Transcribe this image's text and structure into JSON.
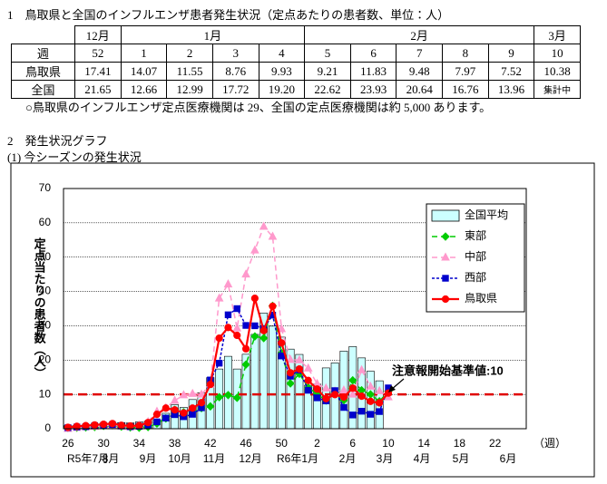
{
  "section1": {
    "title": "1　鳥取県と全国のインフルエンザ患者発生状況（定点あたりの患者数、単位：人）",
    "table": {
      "months": [
        "12月",
        "1月",
        "2月",
        "3月"
      ],
      "rows": [
        [
          "週",
          "52",
          "1",
          "2",
          "3",
          "4",
          "5",
          "6",
          "7",
          "8",
          "9",
          "10"
        ],
        [
          "鳥取県",
          "17.41",
          "14.07",
          "11.55",
          "8.76",
          "9.93",
          "9.21",
          "11.83",
          "9.48",
          "7.97",
          "7.52",
          "10.38"
        ],
        [
          "全国",
          "21.65",
          "12.66",
          "12.99",
          "17.72",
          "19.20",
          "22.62",
          "23.93",
          "20.64",
          "16.76",
          "13.96",
          "集計中"
        ]
      ]
    },
    "note": "○鳥取県のインフルエンザ定点医療機関は 29、全国の定点医療機関は約 5,000 あります。"
  },
  "section2": {
    "title": "2　発生状況グラフ",
    "subtitle": "(1) 今シーズンの発生状況"
  },
  "chart_data": {
    "type": "bar",
    "y_label": "定点当たりの患者数（人）",
    "x_unit": "（週）",
    "categories": [
      "26",
      null,
      null,
      null,
      "30",
      null,
      null,
      null,
      "34",
      null,
      null,
      null,
      "38",
      null,
      null,
      null,
      "42",
      null,
      null,
      null,
      "46",
      null,
      null,
      null,
      "50",
      null,
      null,
      null,
      "2",
      null,
      null,
      null,
      "6",
      null,
      null,
      null,
      "10",
      null,
      null,
      null,
      "14",
      null,
      null,
      null,
      "18",
      null,
      null,
      null,
      "22",
      null,
      null,
      null
    ],
    "x_month_labels": [
      "R5年7月",
      "8月",
      "9月",
      "10月",
      "11月",
      "12月",
      "R6年1月",
      "2月",
      "3月",
      "4月",
      "5月",
      "6月"
    ],
    "ylim": [
      0,
      70
    ],
    "yticks": [
      0,
      10,
      20,
      30,
      40,
      50,
      60,
      70
    ],
    "grid": true,
    "legend": "upper right",
    "threshold": 10,
    "threshold_color": "#e00000",
    "annotation": "注意報開始基準値:10",
    "series": [
      {
        "name": "全国平均",
        "type": "bar",
        "color": "#ccffff",
        "values": [
          0.9,
          1.0,
          1.1,
          1.4,
          1.6,
          1.7,
          1.8,
          1.7,
          2.0,
          2.2,
          2.6,
          4.5,
          7.0,
          6.2,
          8.5,
          10.5,
          14.9,
          17.4,
          21.1,
          17.4,
          21.7,
          27.5,
          33.7,
          29.9,
          26.7,
          23.2,
          21.65,
          12.66,
          12.99,
          17.72,
          19.2,
          22.62,
          23.93,
          20.64,
          16.76,
          13.96,
          null,
          null,
          null,
          null,
          null,
          null,
          null,
          null,
          null,
          null,
          null,
          null,
          null,
          null,
          null,
          null
        ]
      },
      {
        "name": "東部",
        "type": "line",
        "color": "#00cc00",
        "line_style": "dashed",
        "marker": "diamond",
        "values": [
          0.2,
          0.3,
          0.4,
          0.5,
          0.8,
          1.0,
          0.6,
          0.4,
          0.3,
          0.5,
          1.5,
          3.0,
          5.5,
          4.8,
          5.5,
          6.0,
          6.5,
          9.2,
          9.8,
          9.0,
          18.7,
          26.9,
          26.4,
          35.8,
          22.0,
          13.2,
          16.0,
          12.0,
          10.1,
          8.2,
          10.4,
          8.3,
          14.1,
          11.2,
          10.0,
          8.0,
          10.9,
          null,
          null,
          null,
          null,
          null,
          null,
          null,
          null,
          null,
          null,
          null,
          null,
          null,
          null,
          null
        ]
      },
      {
        "name": "中部",
        "type": "line",
        "color": "#ff99cc",
        "line_style": "dashed",
        "marker": "triangle",
        "values": [
          0.0,
          0.3,
          0.5,
          0.6,
          0.9,
          1.1,
          0.7,
          0.5,
          1.0,
          2.0,
          5.0,
          6.1,
          8.2,
          9.8,
          10.2,
          10.0,
          12.9,
          38.0,
          42.1,
          29.3,
          45.0,
          52.0,
          58.9,
          56.0,
          29.1,
          20.1,
          20.0,
          17.6,
          13.1,
          11.8,
          10.9,
          11.2,
          10.0,
          17.1,
          12.3,
          11.0,
          9.2,
          null,
          null,
          null,
          null,
          null,
          null,
          null,
          null,
          null,
          null,
          null,
          null,
          null,
          null,
          null
        ]
      },
      {
        "name": "西部",
        "type": "line",
        "color": "#0000cc",
        "line_style": "dotted",
        "marker": "square",
        "values": [
          0.3,
          0.5,
          0.6,
          0.9,
          1.0,
          1.2,
          0.8,
          0.6,
          0.7,
          1.0,
          2.0,
          3.1,
          4.1,
          3.5,
          4.2,
          6.1,
          14.2,
          19.1,
          33.2,
          35.0,
          30.1,
          30.0,
          29.2,
          33.1,
          21.2,
          15.3,
          17.1,
          11.2,
          9.0,
          8.1,
          11.1,
          6.2,
          4.0,
          5.1,
          4.2,
          5.0,
          11.9,
          null,
          null,
          null,
          null,
          null,
          null,
          null,
          null,
          null,
          null,
          null,
          null,
          null,
          null,
          null
        ]
      },
      {
        "name": "鳥取県",
        "type": "line",
        "color": "#ff0000",
        "line_style": "solid",
        "marker": "circle",
        "values": [
          0.4,
          0.7,
          0.9,
          1.1,
          1.3,
          1.5,
          1.0,
          0.8,
          0.9,
          1.8,
          4.2,
          6.0,
          5.5,
          4.6,
          6.0,
          7.6,
          12.9,
          26.4,
          29.5,
          27.2,
          23.3,
          38.0,
          28.6,
          35.7,
          25.0,
          16.3,
          17.41,
          14.07,
          11.55,
          8.76,
          9.93,
          9.21,
          11.83,
          9.48,
          7.97,
          7.52,
          10.38,
          null,
          null,
          null,
          null,
          null,
          null,
          null,
          null,
          null,
          null,
          null,
          null,
          null,
          null,
          null
        ]
      }
    ]
  }
}
